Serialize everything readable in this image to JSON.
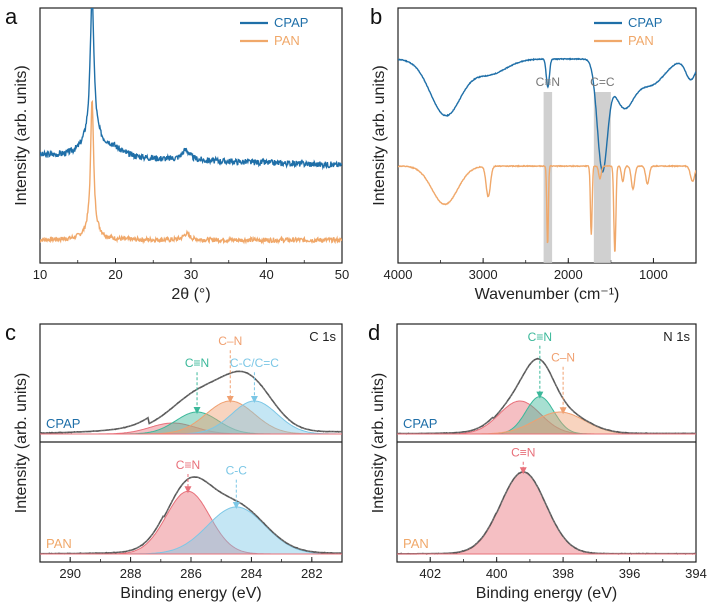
{
  "colors": {
    "cpap": "#1f6fa8",
    "pan": "#f0a86a",
    "green": "#3bb89a",
    "red": "#e8707a",
    "blue": "#7cc7e6",
    "orange": "#f0a070",
    "fit": "#6e6e6e",
    "band": "#c8c8c8"
  },
  "chart_data": [
    {
      "panel": "a",
      "type": "line",
      "xlabel": "2θ (°)",
      "ylabel": "Intensity (arb. units)",
      "xlim": [
        10,
        50
      ],
      "xticks": [
        10,
        20,
        30,
        40,
        50
      ],
      "legend": [
        {
          "name": "CPAP",
          "color": "#1f6fa8"
        },
        {
          "name": "PAN",
          "color": "#f0a86a"
        }
      ],
      "series": [
        {
          "name": "CPAP",
          "baseline": 0.42,
          "peaks": [
            {
              "x": 16.9,
              "h": 0.53,
              "w": 0.28
            },
            {
              "x": 16.9,
              "h": 0.1,
              "w": 1.2
            },
            {
              "x": 19.5,
              "h": 0.035,
              "w": 1.5
            },
            {
              "x": 29.3,
              "h": 0.04,
              "w": 0.6
            }
          ],
          "noise": 0.012,
          "slope": -0.0009,
          "seed": 3
        },
        {
          "name": "PAN",
          "baseline": 0.09,
          "peaks": [
            {
              "x": 16.9,
              "h": 0.5,
              "w": 0.22
            },
            {
              "x": 16.9,
              "h": 0.06,
              "w": 0.9
            },
            {
              "x": 29.4,
              "h": 0.025,
              "w": 0.5
            }
          ],
          "noise": 0.009,
          "slope": 0,
          "seed": 7
        }
      ]
    },
    {
      "panel": "b",
      "type": "line",
      "xlabel": "Wavenumber (cm⁻¹)",
      "ylabel": "Intensity (arb. units)",
      "xlim": [
        4000,
        500
      ],
      "xticks": [
        4000,
        3000,
        2000,
        1000
      ],
      "legend": [
        {
          "name": "CPAP",
          "color": "#1f6fa8"
        },
        {
          "name": "PAN",
          "color": "#f0a86a"
        }
      ],
      "bands": [
        {
          "label": "C≡N",
          "from": 2290,
          "to": 2190
        },
        {
          "label": "C=C",
          "from": 1700,
          "to": 1500
        }
      ],
      "series": [
        {
          "name": "CPAP",
          "baseline": 0.8,
          "dips": [
            {
              "x": 3440,
              "d": 0.22,
              "w": 180
            },
            {
              "x": 2930,
              "d": 0.06,
              "w": 200
            },
            {
              "x": 2240,
              "d": 0.11,
              "w": 18
            },
            {
              "x": 1600,
              "d": 0.42,
              "w": 60
            },
            {
              "x": 1350,
              "d": 0.18,
              "w": 120
            },
            {
              "x": 1030,
              "d": 0.1,
              "w": 160
            },
            {
              "x": 560,
              "d": 0.08,
              "w": 60
            }
          ]
        },
        {
          "name": "PAN",
          "baseline": 0.38,
          "dips": [
            {
              "x": 3450,
              "d": 0.15,
              "w": 150
            },
            {
              "x": 2940,
              "d": 0.12,
              "w": 25
            },
            {
              "x": 2243,
              "d": 0.31,
              "w": 9
            },
            {
              "x": 1730,
              "d": 0.27,
              "w": 10
            },
            {
              "x": 1628,
              "d": 0.05,
              "w": 15
            },
            {
              "x": 1453,
              "d": 0.34,
              "w": 12
            },
            {
              "x": 1360,
              "d": 0.06,
              "w": 15
            },
            {
              "x": 1240,
              "d": 0.09,
              "w": 20
            },
            {
              "x": 1070,
              "d": 0.07,
              "w": 20
            },
            {
              "x": 540,
              "d": 0.06,
              "w": 25
            }
          ]
        }
      ]
    },
    {
      "panel": "c",
      "type": "area",
      "xlabel": "Binding energy (eV)",
      "ylabel": "Intensity (arb. units)",
      "corner_label": "C 1s",
      "xlim": [
        291,
        281
      ],
      "xticks": [
        290,
        288,
        286,
        284,
        282
      ],
      "subplots": [
        {
          "name": "CPAP",
          "fit": {
            "tail": 0.08
          },
          "peaks": [
            {
              "center": 286.6,
              "height": 0.1,
              "width": 0.75,
              "color": "red"
            },
            {
              "center": 285.8,
              "height": 0.2,
              "width": 0.7,
              "color": "green"
            },
            {
              "center": 284.7,
              "height": 0.3,
              "width": 0.8,
              "color": "orange"
            },
            {
              "center": 283.9,
              "height": 0.3,
              "width": 0.75,
              "color": "blue"
            }
          ],
          "annotations": [
            {
              "text": "C≡N",
              "x": 285.8,
              "color": "green",
              "yl": 0.68
            },
            {
              "text": "C–N",
              "x": 284.7,
              "color": "orange",
              "yl": 0.88
            },
            {
              "text": "C-C/C=C",
              "x": 283.9,
              "color": "blue",
              "yl": 0.68
            }
          ]
        },
        {
          "name": "PAN",
          "fit": {
            "tail": 0.03
          },
          "peaks": [
            {
              "center": 286.1,
              "height": 0.56,
              "width": 0.72,
              "color": "red"
            },
            {
              "center": 284.5,
              "height": 0.42,
              "width": 0.95,
              "color": "blue"
            }
          ],
          "annotations": [
            {
              "text": "C≡N",
              "x": 286.1,
              "color": "red",
              "yl": 0.83
            },
            {
              "text": "C-C",
              "x": 284.5,
              "color": "blue",
              "yl": 0.78
            }
          ]
        }
      ]
    },
    {
      "panel": "d",
      "type": "area",
      "xlabel": "Binding energy (eV)",
      "ylabel": "Intensity (arb. units)",
      "corner_label": "N 1s",
      "xlim": [
        403,
        394
      ],
      "xticks": [
        402,
        400,
        398,
        396,
        394
      ],
      "subplots": [
        {
          "name": "CPAP",
          "fit": {
            "tail": 0.02
          },
          "peaks": [
            {
              "center": 399.3,
              "height": 0.3,
              "width": 0.62,
              "color": "red"
            },
            {
              "center": 398.7,
              "height": 0.34,
              "width": 0.42,
              "color": "green"
            },
            {
              "center": 398.1,
              "height": 0.2,
              "width": 0.75,
              "color": "orange"
            }
          ],
          "annotations": [
            {
              "text": "C≡N",
              "x": 398.7,
              "color": "green",
              "yl": 0.92
            },
            {
              "text": "C–N",
              "x": 398.0,
              "color": "orange",
              "yl": 0.73
            }
          ]
        },
        {
          "name": "PAN",
          "fit": {
            "tail": 0.01
          },
          "peaks": [
            {
              "center": 399.2,
              "height": 0.73,
              "width": 0.68,
              "color": "red"
            }
          ],
          "annotations": [
            {
              "text": "C≡N",
              "x": 399.2,
              "color": "red",
              "yl": 0.94
            }
          ]
        }
      ]
    }
  ]
}
